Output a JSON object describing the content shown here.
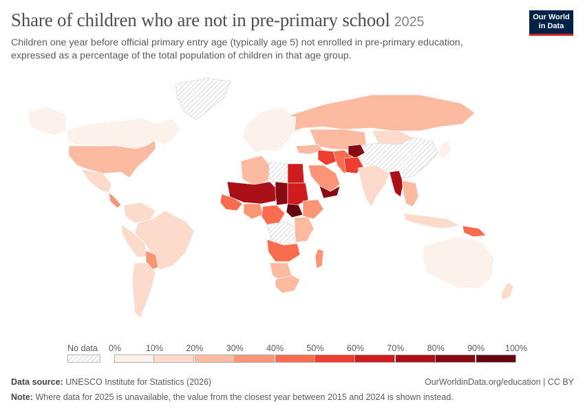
{
  "header": {
    "title": "Share of children who are not in pre-primary school",
    "year": "2025",
    "subtitle": "Children one year before official primary entry age (typically age 5) not enrolled in pre-primary education, expressed as a percentage of the total population of children in that age group."
  },
  "logo": {
    "line1": "Our World",
    "line2": "in Data"
  },
  "legend": {
    "no_data_label": "No data",
    "ticks": [
      "0%",
      "10%",
      "20%",
      "30%",
      "40%",
      "50%",
      "60%",
      "70%",
      "80%",
      "90%",
      "100%"
    ],
    "colors": [
      "#fdf1ec",
      "#fddbcc",
      "#fcbaa0",
      "#fb9576",
      "#f96c4f",
      "#ee3e2f",
      "#cf1d1f",
      "#ab0f18",
      "#880b14",
      "#660510"
    ],
    "no_data_color": "#e6e6e6"
  },
  "footer": {
    "source_label": "Data source:",
    "source_text": "UNESCO Institute for Statistics (2026)",
    "link_text": "OurWorldinData.org/education | CC BY",
    "note_label": "Note:",
    "note_text": "Where data for 2025 is unavailable, the value from the closest year between 2015 and 2024 is shown instead."
  },
  "map_data": {
    "regions": [
      {
        "name": "Canada",
        "bin": 0
      },
      {
        "name": "United States",
        "bin": 2
      },
      {
        "name": "Alaska",
        "bin": 0
      },
      {
        "name": "Greenland",
        "bin": "nodata"
      },
      {
        "name": "Mexico",
        "bin": 1
      },
      {
        "name": "Central America",
        "bin": 3
      },
      {
        "name": "Colombia / Venezuela",
        "bin": 1
      },
      {
        "name": "Brazil",
        "bin": 1
      },
      {
        "name": "Peru / Bolivia",
        "bin": 1
      },
      {
        "name": "Paraguay",
        "bin": 3
      },
      {
        "name": "Argentina / Chile",
        "bin": 1
      },
      {
        "name": "Europe",
        "bin": 0
      },
      {
        "name": "Russia",
        "bin": 2
      },
      {
        "name": "Kazakhstan / Central Asia",
        "bin": 2
      },
      {
        "name": "Mongolia",
        "bin": 1
      },
      {
        "name": "China",
        "bin": "nodata"
      },
      {
        "name": "Turkey",
        "bin": 2
      },
      {
        "name": "Iraq / Syria",
        "bin": 5
      },
      {
        "name": "Iran",
        "bin": 4
      },
      {
        "name": "Afghanistan",
        "bin": 8
      },
      {
        "name": "Pakistan",
        "bin": 5
      },
      {
        "name": "India",
        "bin": 1
      },
      {
        "name": "Myanmar",
        "bin": 7
      },
      {
        "name": "Southeast Asia",
        "bin": 2
      },
      {
        "name": "Indonesia",
        "bin": 1
      },
      {
        "name": "Papua New Guinea",
        "bin": 4
      },
      {
        "name": "Australia",
        "bin": 0
      },
      {
        "name": "New Zealand",
        "bin": 1
      },
      {
        "name": "Japan",
        "bin": 0
      },
      {
        "name": "Saudi Arabia",
        "bin": 3
      },
      {
        "name": "Yemen",
        "bin": 8
      },
      {
        "name": "Algeria",
        "bin": 2
      },
      {
        "name": "Libya",
        "bin": "nodata"
      },
      {
        "name": "Egypt",
        "bin": 6
      },
      {
        "name": "Mali / Niger",
        "bin": 7
      },
      {
        "name": "Chad",
        "bin": 8
      },
      {
        "name": "Sudan",
        "bin": 6
      },
      {
        "name": "South Sudan",
        "bin": 9
      },
      {
        "name": "Ethiopia",
        "bin": 3
      },
      {
        "name": "West Africa coast",
        "bin": 4
      },
      {
        "name": "Nigeria",
        "bin": 3
      },
      {
        "name": "Central Africa",
        "bin": 4
      },
      {
        "name": "DR Congo",
        "bin": "nodata"
      },
      {
        "name": "East Africa",
        "bin": 2
      },
      {
        "name": "Angola / Zambia",
        "bin": 4
      },
      {
        "name": "Namibia / Botswana",
        "bin": 2
      },
      {
        "name": "South Africa",
        "bin": 2
      },
      {
        "name": "Madagascar",
        "bin": 3
      }
    ]
  }
}
